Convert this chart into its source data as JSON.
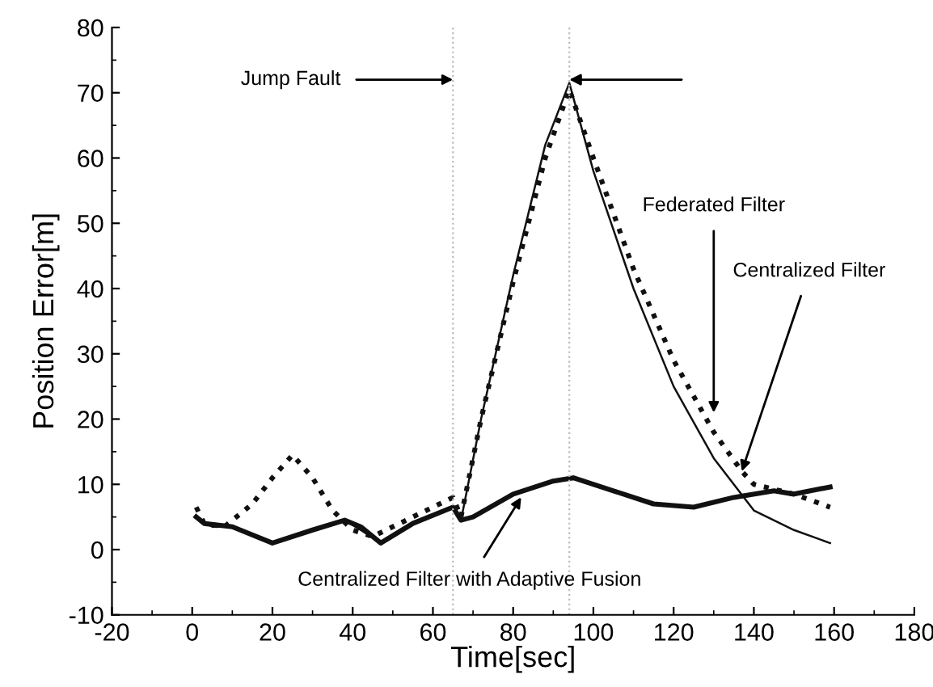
{
  "chart_data": {
    "type": "line",
    "xlabel": "Time[sec]",
    "ylabel": "Position Error[m]",
    "xlim": [
      -20,
      180
    ],
    "xticks": [
      -20,
      0,
      20,
      40,
      60,
      80,
      100,
      120,
      140,
      160,
      180
    ],
    "ylim": [
      -10,
      80
    ],
    "yticks": [
      -10,
      0,
      10,
      20,
      30,
      40,
      50,
      60,
      70,
      80
    ],
    "grid": false,
    "legend": false,
    "series": [
      {
        "color": "#111111",
        "line_style": "solid",
        "x": [
          1,
          5,
          10,
          20,
          30,
          38,
          42,
          47,
          55,
          65,
          67,
          72,
          80,
          88,
          94,
          100,
          110,
          120,
          130,
          140,
          150,
          159
        ],
        "values": [
          5,
          3.5,
          3.5,
          1,
          3,
          4.5,
          3,
          1,
          4,
          6.5,
          4.5,
          20,
          42,
          62,
          71.5,
          58,
          40,
          25,
          14,
          6,
          3,
          1
        ]
      },
      {
        "color": "#111111",
        "line_style": "dotted",
        "x": [
          1,
          3,
          8,
          15,
          20,
          25,
          30,
          35,
          40,
          45,
          55,
          65,
          67,
          72,
          80,
          88,
          94,
          100,
          110,
          120,
          130,
          137,
          140,
          150,
          159
        ],
        "values": [
          6.5,
          4,
          3.5,
          7,
          11,
          14.5,
          11,
          6,
          3,
          2,
          5,
          8,
          5,
          20,
          41,
          60,
          70.5,
          60,
          43,
          29,
          18,
          12,
          10,
          8.5,
          6.5
        ]
      },
      {
        "color": "#111111",
        "line_style": "solid",
        "x": [
          1,
          3,
          10,
          20,
          30,
          38,
          42,
          47,
          55,
          65,
          67,
          70,
          80,
          90,
          95,
          105,
          115,
          125,
          135,
          145,
          150,
          159
        ],
        "values": [
          5,
          4,
          3.5,
          1,
          3,
          4.5,
          3.5,
          1,
          4,
          6.5,
          4.5,
          5,
          8.5,
          10.5,
          11,
          9,
          7,
          6.5,
          8,
          9,
          8.5,
          9.6
        ]
      }
    ],
    "ref_lines": [
      {
        "axis": "x",
        "value": 65,
        "color": "#bbbbbb",
        "line_style": "dotted"
      },
      {
        "axis": "x",
        "value": 94,
        "color": "#bbbbbb",
        "line_style": "dotted"
      }
    ],
    "annotations": [
      {
        "text": "Jump Fault",
        "x": 65,
        "y": 72
      },
      {
        "text": "Federated Filter",
        "x": 130,
        "y": 21
      },
      {
        "text": "Centralized Filter",
        "x": 137,
        "y": 12
      },
      {
        "text": "Centralized Filter with Adaptive Fusion",
        "x": 82,
        "y": 8
      }
    ]
  }
}
